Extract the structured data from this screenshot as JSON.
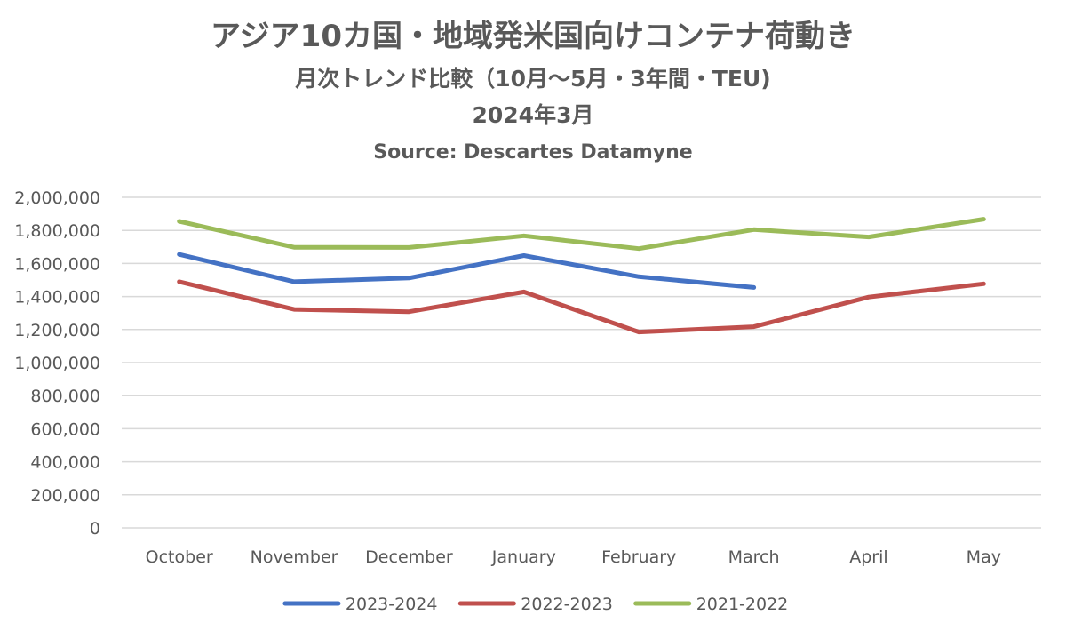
{
  "chart_data": {
    "type": "line",
    "title_lines": [
      "アジア10カ国・地域発米国向けコンテナ荷動き",
      "月次トレンド比較（10月～5月・3年間・TEU)",
      "2024年3月",
      "Source: Descartes Datamyne"
    ],
    "xlabel": "",
    "ylabel": "",
    "categories": [
      "October",
      "November",
      "December",
      "January",
      "February",
      "March",
      "April",
      "May"
    ],
    "ylim": [
      0,
      2000000
    ],
    "yticks": [
      0,
      200000,
      400000,
      600000,
      800000,
      1000000,
      1200000,
      1400000,
      1600000,
      1800000,
      2000000
    ],
    "ytick_labels": [
      "0",
      "200,000",
      "400,000",
      "600,000",
      "800,000",
      "1,000,000",
      "1,200,000",
      "1,400,000",
      "1,600,000",
      "1,800,000",
      "2,000,000"
    ],
    "grid": true,
    "legend_position": "bottom",
    "series": [
      {
        "name": "2023-2024",
        "color": "#4472c4",
        "values": [
          1655000,
          1490000,
          1512000,
          1648000,
          1520000,
          1455000,
          null,
          null
        ]
      },
      {
        "name": "2022-2023",
        "color": "#c0504d",
        "values": [
          1490000,
          1322000,
          1308000,
          1428000,
          1185000,
          1217000,
          1397000,
          1477000
        ]
      },
      {
        "name": "2021-2022",
        "color": "#9bbb59",
        "values": [
          1855000,
          1698000,
          1697000,
          1767000,
          1690000,
          1805000,
          1760000,
          1868000
        ]
      }
    ]
  }
}
